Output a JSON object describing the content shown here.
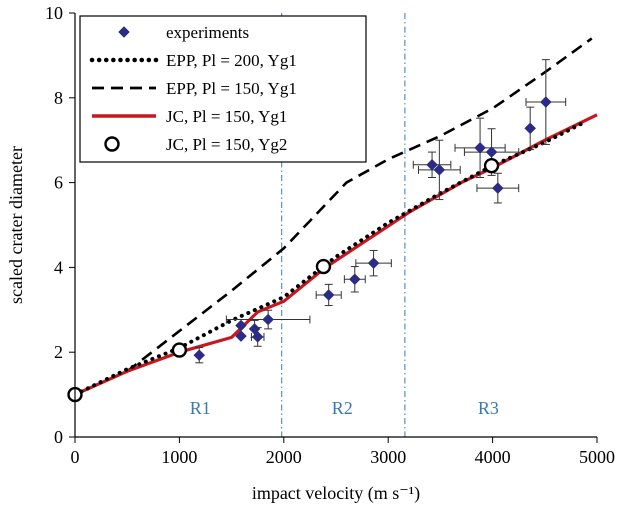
{
  "chart_data": {
    "type": "scatter",
    "xlabel": "impact velocity (m s⁻¹)",
    "ylabel": "scaled crater diameter",
    "xlim": [
      0,
      5000
    ],
    "ylim": [
      0,
      10
    ],
    "xticks": [
      "0",
      "1000",
      "2000",
      "3000",
      "4000",
      "5000"
    ],
    "yticks": [
      "0",
      "2",
      "4",
      "6",
      "8",
      "10"
    ],
    "grid": false,
    "legend_position": "top-left",
    "region_lines_x": [
      1980,
      3160
    ],
    "regions": [
      {
        "label": "R1",
        "x": 1200
      },
      {
        "label": "R2",
        "x": 2560
      },
      {
        "label": "R3",
        "x": 3960
      }
    ],
    "series": [
      {
        "name": "experiments",
        "style": "marker-diamond",
        "color": "#2b2c86",
        "points": [
          {
            "x": 1190,
            "y": 1.93,
            "xerr": 0,
            "yerr": 0.18
          },
          {
            "x": 1720,
            "y": 2.55,
            "xerr": 0,
            "yerr": 0.2
          },
          {
            "x": 1750,
            "y": 2.36,
            "xerr": 60,
            "yerr": 0.22
          },
          {
            "x": 1590,
            "y": 2.63,
            "xerr": 0,
            "yerr": 0
          },
          {
            "x": 1590,
            "y": 2.38,
            "xerr": 0,
            "yerr": 0
          },
          {
            "x": 1850,
            "y": 2.77,
            "xerr": 400,
            "yerr": 0.22
          },
          {
            "x": 2430,
            "y": 3.35,
            "xerr": 120,
            "yerr": 0.25
          },
          {
            "x": 2680,
            "y": 3.72,
            "xerr": 100,
            "yerr": 0.3
          },
          {
            "x": 2860,
            "y": 4.1,
            "xerr": 170,
            "yerr": 0.3
          },
          {
            "x": 3420,
            "y": 6.42,
            "xerr": 180,
            "yerr": 0.3
          },
          {
            "x": 3490,
            "y": 6.3,
            "xerr": 200,
            "yerr": 0.7
          },
          {
            "x": 3880,
            "y": 6.82,
            "xerr": 240,
            "yerr": 0.7
          },
          {
            "x": 3990,
            "y": 6.72,
            "xerr": 260,
            "yerr": 0.55
          },
          {
            "x": 4050,
            "y": 5.87,
            "xerr": 200,
            "yerr": 0.35
          },
          {
            "x": 4360,
            "y": 7.28,
            "xerr": 0,
            "yerr": 0.5
          },
          {
            "x": 4510,
            "y": 7.9,
            "xerr": 190,
            "yerr": 1.0
          }
        ]
      },
      {
        "name": "EPP, Pl = 200, Yg1",
        "style": "dotted",
        "color": "#000000",
        "points": [
          {
            "x": 0,
            "y": 1.0
          },
          {
            "x": 500,
            "y": 1.6
          },
          {
            "x": 1000,
            "y": 2.1
          },
          {
            "x": 1500,
            "y": 2.75
          },
          {
            "x": 2000,
            "y": 3.3
          },
          {
            "x": 2500,
            "y": 4.25
          },
          {
            "x": 3000,
            "y": 5.05
          },
          {
            "x": 3500,
            "y": 5.75
          },
          {
            "x": 4000,
            "y": 6.4
          },
          {
            "x": 4500,
            "y": 6.95
          },
          {
            "x": 4900,
            "y": 7.45
          }
        ]
      },
      {
        "name": "EPP, Pl = 150, Yg1",
        "style": "dashed",
        "color": "#000000",
        "points": [
          {
            "x": 0,
            "y": 1.0
          },
          {
            "x": 500,
            "y": 1.55
          },
          {
            "x": 1000,
            "y": 2.5
          },
          {
            "x": 1500,
            "y": 3.45
          },
          {
            "x": 2000,
            "y": 4.45
          },
          {
            "x": 2600,
            "y": 6.0
          },
          {
            "x": 3000,
            "y": 6.55
          },
          {
            "x": 3500,
            "y": 7.1
          },
          {
            "x": 4000,
            "y": 7.75
          },
          {
            "x": 4500,
            "y": 8.6
          },
          {
            "x": 4950,
            "y": 9.4
          }
        ]
      },
      {
        "name": "JC, Pl = 150, Yg1",
        "style": "solid",
        "color": "#c8171e",
        "points": [
          {
            "x": 0,
            "y": 1.0
          },
          {
            "x": 500,
            "y": 1.55
          },
          {
            "x": 1000,
            "y": 2.0
          },
          {
            "x": 1500,
            "y": 2.35
          },
          {
            "x": 1750,
            "y": 2.95
          },
          {
            "x": 2000,
            "y": 3.2
          },
          {
            "x": 2400,
            "y": 4.0
          },
          {
            "x": 2800,
            "y": 4.65
          },
          {
            "x": 3200,
            "y": 5.3
          },
          {
            "x": 3700,
            "y": 6.0
          },
          {
            "x": 4000,
            "y": 6.35
          },
          {
            "x": 4500,
            "y": 7.0
          },
          {
            "x": 5000,
            "y": 7.6
          }
        ]
      },
      {
        "name": "JC, Pl = 150, Yg2",
        "style": "marker-open-circle",
        "color": "#000000",
        "points": [
          {
            "x": 0,
            "y": 1.0
          },
          {
            "x": 1000,
            "y": 2.05
          },
          {
            "x": 2380,
            "y": 4.02
          },
          {
            "x": 3990,
            "y": 6.4
          }
        ]
      }
    ]
  }
}
